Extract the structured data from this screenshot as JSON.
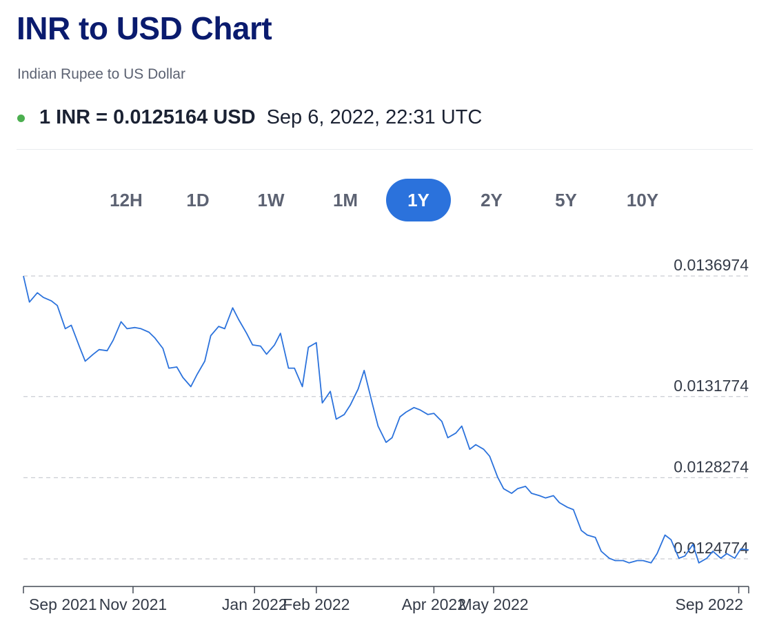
{
  "header": {
    "title": "INR to USD Chart",
    "subtitle": "Indian Rupee to US Dollar",
    "rate": "1 INR = 0.0125164 USD",
    "timestamp": "Sep 6, 2022, 22:31 UTC",
    "status_color": "#4caf50"
  },
  "tabs": [
    {
      "label": "12H",
      "active": false
    },
    {
      "label": "1D",
      "active": false
    },
    {
      "label": "1W",
      "active": false
    },
    {
      "label": "1M",
      "active": false
    },
    {
      "label": "1Y",
      "active": true
    },
    {
      "label": "2Y",
      "active": false
    },
    {
      "label": "5Y",
      "active": false
    },
    {
      "label": "10Y",
      "active": false
    }
  ],
  "chart_data": {
    "type": "line",
    "title": "",
    "xlabel": "",
    "ylabel": "",
    "line_color": "#2b72dc",
    "grid": "horizontal dashed",
    "y_ticks": [
      0.0136974,
      0.0131774,
      0.0128274,
      0.0124774
    ],
    "ylim": [
      0.0124,
      0.0137
    ],
    "x_ticks": [
      {
        "label": "Sep 2021",
        "date": "2021-09-07"
      },
      {
        "label": "Nov 2021",
        "date": "2021-11-01"
      },
      {
        "label": "Jan 2022",
        "date": "2022-01-01"
      },
      {
        "label": "Feb 2022",
        "date": "2022-02-01"
      },
      {
        "label": "Apr 2022",
        "date": "2022-04-01"
      },
      {
        "label": "May 2022",
        "date": "2022-05-01"
      },
      {
        "label": "Sep 2022",
        "date": "2022-09-01"
      }
    ],
    "series": [
      {
        "x": [
          "2021-09-07",
          "2021-09-10",
          "2021-09-14",
          "2021-09-17",
          "2021-09-21",
          "2021-09-24",
          "2021-09-28",
          "2021-10-01",
          "2021-10-05",
          "2021-10-08",
          "2021-10-12",
          "2021-10-15",
          "2021-10-19",
          "2021-10-22",
          "2021-10-26",
          "2021-10-29",
          "2021-11-02",
          "2021-11-05",
          "2021-11-09",
          "2021-11-12",
          "2021-11-16",
          "2021-11-19",
          "2021-11-23",
          "2021-11-26",
          "2021-11-30",
          "2021-12-03",
          "2021-12-07",
          "2021-12-10",
          "2021-12-14",
          "2021-12-17",
          "2021-12-21",
          "2021-12-24",
          "2021-12-28",
          "2021-12-31",
          "2022-01-04",
          "2022-01-07",
          "2022-01-11",
          "2022-01-14",
          "2022-01-18",
          "2022-01-21",
          "2022-01-25",
          "2022-01-28",
          "2022-02-01",
          "2022-02-04",
          "2022-02-08",
          "2022-02-11",
          "2022-02-15",
          "2022-02-18",
          "2022-02-22",
          "2022-02-25",
          "2022-03-01",
          "2022-03-04",
          "2022-03-08",
          "2022-03-11",
          "2022-03-15",
          "2022-03-18",
          "2022-03-22",
          "2022-03-25",
          "2022-03-29",
          "2022-04-01",
          "2022-04-05",
          "2022-04-08",
          "2022-04-12",
          "2022-04-15",
          "2022-04-19",
          "2022-04-22",
          "2022-04-26",
          "2022-04-29",
          "2022-05-03",
          "2022-05-06",
          "2022-05-10",
          "2022-05-13",
          "2022-05-17",
          "2022-05-20",
          "2022-05-24",
          "2022-05-27",
          "2022-05-31",
          "2022-06-03",
          "2022-06-07",
          "2022-06-10",
          "2022-06-14",
          "2022-06-17",
          "2022-06-21",
          "2022-06-24",
          "2022-06-28",
          "2022-07-01",
          "2022-07-05",
          "2022-07-08",
          "2022-07-12",
          "2022-07-15",
          "2022-07-19",
          "2022-07-22",
          "2022-07-26",
          "2022-07-29",
          "2022-08-02",
          "2022-08-05",
          "2022-08-09",
          "2022-08-12",
          "2022-08-16",
          "2022-08-19",
          "2022-08-23",
          "2022-08-26",
          "2022-08-30",
          "2022-09-02",
          "2022-09-06"
        ],
        "y": [
          0.013697,
          0.013585,
          0.013625,
          0.013605,
          0.01359,
          0.01357,
          0.01347,
          0.013485,
          0.013395,
          0.01333,
          0.01336,
          0.01338,
          0.013375,
          0.01342,
          0.0135,
          0.01347,
          0.013475,
          0.01347,
          0.013455,
          0.01343,
          0.013385,
          0.0133,
          0.013305,
          0.01326,
          0.01322,
          0.01327,
          0.01333,
          0.01344,
          0.01348,
          0.01347,
          0.01356,
          0.01351,
          0.01345,
          0.0134,
          0.013395,
          0.01336,
          0.0134,
          0.01345,
          0.0133,
          0.0133,
          0.01322,
          0.01339,
          0.01341,
          0.01315,
          0.0132,
          0.01308,
          0.0131,
          0.01314,
          0.01321,
          0.01329,
          0.01315,
          0.01305,
          0.01298,
          0.013,
          0.01309,
          0.01311,
          0.01313,
          0.01312,
          0.0131,
          0.013105,
          0.01307,
          0.013,
          0.01302,
          0.01305,
          0.01295,
          0.01297,
          0.01295,
          0.01292,
          0.01283,
          0.01278,
          0.01276,
          0.01278,
          0.01279,
          0.01276,
          0.01275,
          0.01274,
          0.01275,
          0.01272,
          0.0127,
          0.01269,
          0.0126,
          0.01258,
          0.01257,
          0.01251,
          0.01248,
          0.01247,
          0.01247,
          0.01246,
          0.01247,
          0.01247,
          0.01246,
          0.0125,
          0.01258,
          0.01256,
          0.01248,
          0.01249,
          0.01254,
          0.01246,
          0.01248,
          0.01251,
          0.01248,
          0.0125,
          0.01248,
          0.01252,
          0.012516
        ]
      }
    ]
  }
}
